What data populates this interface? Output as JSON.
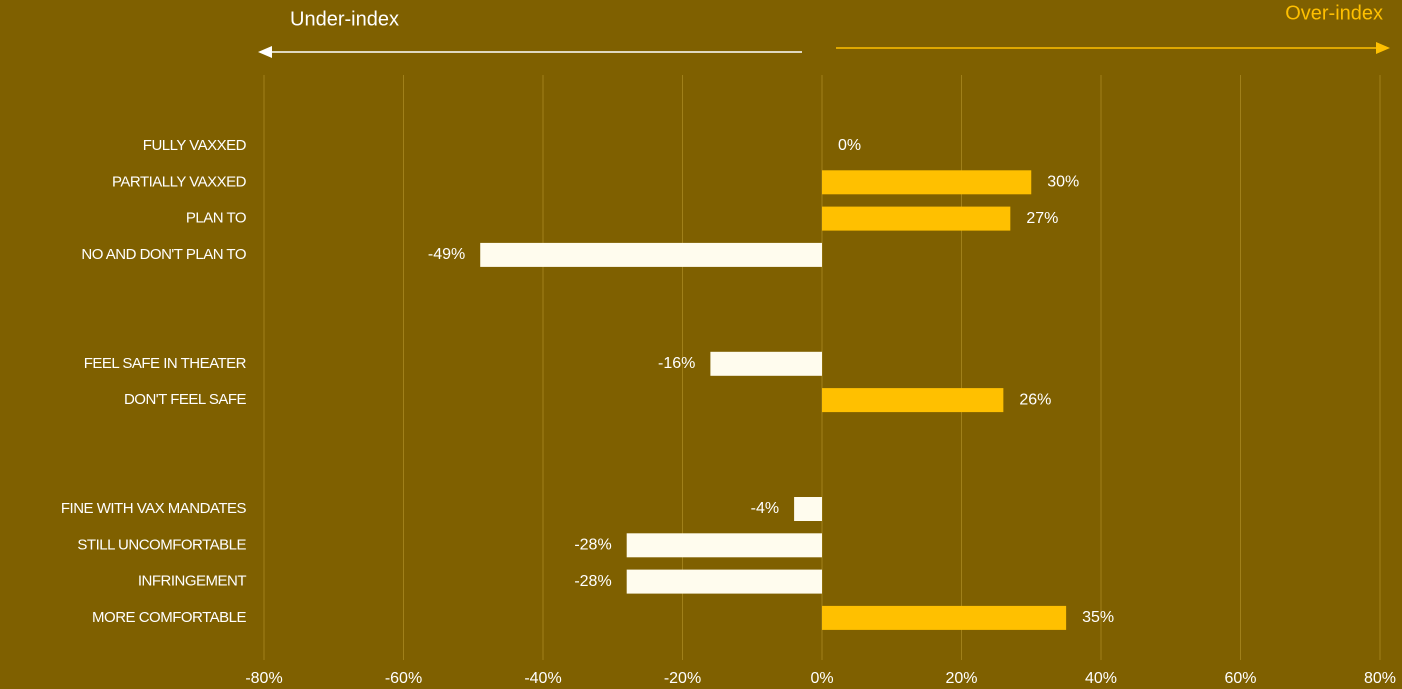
{
  "chart_data": {
    "type": "diverging-bar",
    "annotations": [
      {
        "text": "Under-index",
        "color": "#ffffff"
      },
      {
        "text": "Over-index",
        "color": "#ffc000"
      }
    ],
    "categories": [
      "FULLY VAXXED",
      "PARTIALLY VAXXED",
      "PLAN TO",
      "NO AND DON'T PLAN TO",
      null,
      null,
      "FEEL SAFE IN THEATER",
      "DON'T FEEL SAFE",
      null,
      null,
      "FINE WITH VAX MANDATES",
      "STILL UNCOMFORTABLE",
      "INFRINGEMENT",
      "MORE COMFORTABLE"
    ],
    "values": [
      0,
      30,
      27,
      -49,
      null,
      null,
      -16,
      26,
      null,
      null,
      -4,
      -28,
      -28,
      35
    ],
    "value_labels": [
      "0%",
      "30%",
      "27%",
      "-49%",
      null,
      null,
      "-16%",
      "26%",
      null,
      null,
      "-4%",
      "-28%",
      "-28%",
      "35%"
    ],
    "color": "#ffc000",
    "negative_color": "#fffcee",
    "xlim": [
      -80,
      80
    ],
    "xticks": [
      {
        "value": -80,
        "label": "-80%"
      },
      {
        "value": -60,
        "label": "-60%"
      },
      {
        "value": -40,
        "label": "-40%"
      },
      {
        "value": -20,
        "label": "-20%"
      },
      {
        "value": 0,
        "label": "0%"
      },
      {
        "value": 20,
        "label": "20%"
      },
      {
        "value": 40,
        "label": "40%"
      },
      {
        "value": 60,
        "label": "60%"
      },
      {
        "value": 80,
        "label": "80%"
      }
    ],
    "grid": true
  }
}
